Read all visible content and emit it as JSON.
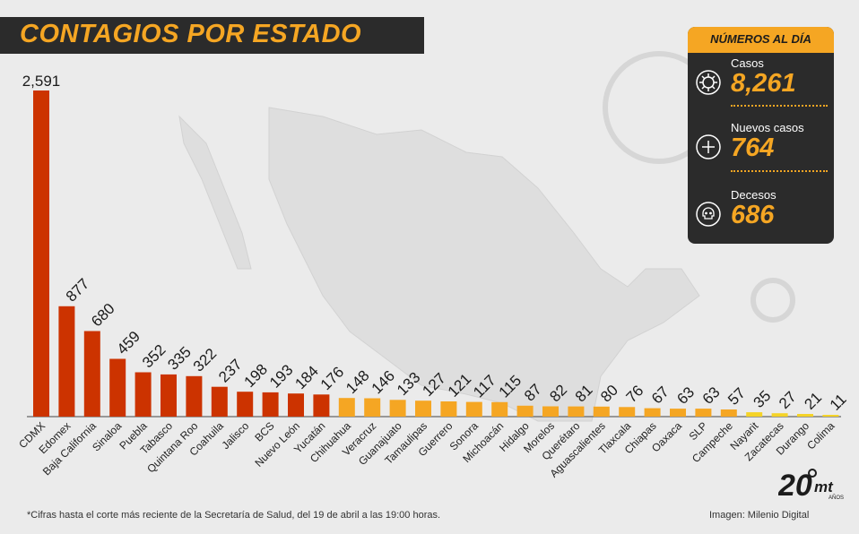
{
  "header": {
    "title": "CONTAGIOS POR ESTADO"
  },
  "panel": {
    "heading": "NÚMEROS AL DÍA",
    "stats": [
      {
        "label": "Casos",
        "value": "8,261",
        "icon": "virus-icon"
      },
      {
        "label": "Nuevos casos",
        "value": "764",
        "icon": "plus-circle-icon"
      },
      {
        "label": "Decesos",
        "value": "686",
        "icon": "skull-icon"
      }
    ]
  },
  "footer": {
    "note": "*Cifras hasta el corte más reciente de la Secretaría de Salud, del 19 de abril a las 19:00 horas.",
    "credit": "Imagen: Milenio Digital",
    "logo_text": "20 mt AÑOS"
  },
  "colors": {
    "high": "#cc3300",
    "mid": "#f5a623",
    "low": "#f5d327",
    "title": "#f5a623",
    "dark": "#2b2b2b",
    "background": "#ebebeb"
  },
  "chart_data": {
    "type": "bar",
    "title": "CONTAGIOS POR ESTADO",
    "xlabel": "",
    "ylabel": "",
    "categories": [
      "CDMX",
      "Edomex",
      "Baja California",
      "Sinaloa",
      "Puebla",
      "Tabasco",
      "Quintana Roo",
      "Coahuila",
      "Jalisco",
      "BCS",
      "Nuevo León",
      "Yucatán",
      "Chihuahua",
      "Veracruz",
      "Guanajuato",
      "Tamaulipas",
      "Guerrero",
      "Sonora",
      "Michoacán",
      "Hidalgo",
      "Morelos",
      "Querétaro",
      "Aguascalientes",
      "Tlaxcala",
      "Chiapas",
      "Oaxaca",
      "SLP",
      "Campeche",
      "Nayarit",
      "Zacatecas",
      "Durango",
      "Colima"
    ],
    "values": [
      2591,
      877,
      680,
      459,
      352,
      335,
      322,
      237,
      198,
      193,
      184,
      176,
      148,
      146,
      133,
      127,
      121,
      117,
      115,
      87,
      82,
      81,
      80,
      76,
      67,
      63,
      63,
      57,
      35,
      27,
      21,
      11
    ],
    "value_labels": [
      "2,591",
      "877",
      "680",
      "459",
      "352",
      "335",
      "322",
      "237",
      "198",
      "193",
      "184",
      "176",
      "148",
      "146",
      "133",
      "127",
      "121",
      "117",
      "115",
      "87",
      "82",
      "81",
      "80",
      "76",
      "67",
      "63",
      "63",
      "57",
      "35",
      "27",
      "21",
      "11"
    ],
    "ylim": [
      0,
      2591
    ],
    "grid": false,
    "legend": "none"
  }
}
